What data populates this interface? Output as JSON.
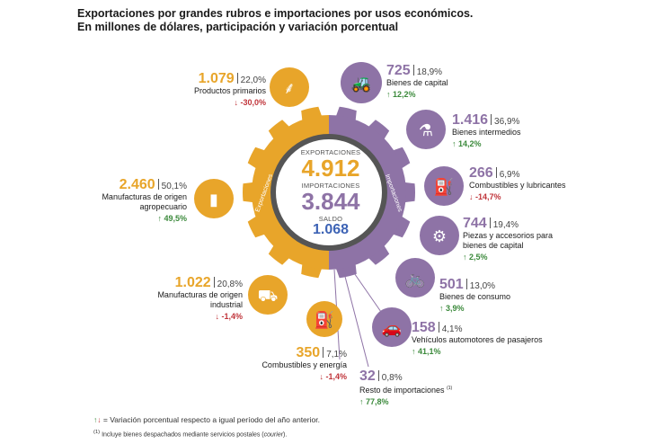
{
  "title_line1": "Exportaciones por grandes rubros e importaciones por usos económicos.",
  "title_line2": "En millones de dólares, participación y variación porcentual",
  "colors": {
    "exports": "#E8A52A",
    "imports": "#8E73A6",
    "balance": "#3D63B5",
    "up": "#3C8A3C",
    "down": "#C0343A"
  },
  "center": {
    "exports_label": "EXPORTACIONES",
    "exports_value": "4.912",
    "imports_label": "IMPORTACIONES",
    "imports_value": "3.844",
    "balance_label": "SALDO",
    "balance_value": "1.068",
    "ring_exports": "Exportaciones",
    "ring_imports": "Importaciones"
  },
  "exports": [
    {
      "value": "1.079",
      "share": "22,0%",
      "name": "Productos primarios",
      "variation": "-30,0%",
      "dir": "down",
      "icon": "wheat-icon"
    },
    {
      "value": "2.460",
      "share": "50,1%",
      "name": "Manufacturas de origen agropecuario",
      "variation": "49,5%",
      "dir": "up",
      "icon": "bottle-icon"
    },
    {
      "value": "1.022",
      "share": "20,8%",
      "name": "Manufacturas de origen industrial",
      "variation": "-1,4%",
      "dir": "down",
      "icon": "truck-icon"
    },
    {
      "value": "350",
      "share": "7,1%",
      "name": "Combustibles y energía",
      "variation": "-1,4%",
      "dir": "down",
      "icon": "fuel-drop-icon"
    }
  ],
  "imports": [
    {
      "value": "725",
      "share": "18,9%",
      "name": "Bienes de capital",
      "variation": "12,2%",
      "dir": "up",
      "icon": "tractor-icon"
    },
    {
      "value": "1.416",
      "share": "36,9%",
      "name": "Bienes intermedios",
      "variation": "14,2%",
      "dir": "up",
      "icon": "flask-icon"
    },
    {
      "value": "266",
      "share": "6,9%",
      "name": "Combustibles y lubricantes",
      "variation": "-14,7%",
      "dir": "down",
      "icon": "jerrycan-icon"
    },
    {
      "value": "744",
      "share": "19,4%",
      "name": "Piezas y accesorios para bienes de capital",
      "variation": "2,5%",
      "dir": "up",
      "icon": "screw-icon"
    },
    {
      "value": "501",
      "share": "13,0%",
      "name": "Bienes de consumo",
      "variation": "3,9%",
      "dir": "up",
      "icon": "bicycle-icon"
    },
    {
      "value": "158",
      "share": "4,1%",
      "name": "Vehículos automotores de pasajeros",
      "variation": "41,1%",
      "dir": "up",
      "icon": "car-icon"
    },
    {
      "value": "32",
      "share": "0,8%",
      "name": "Resto de importaciones",
      "note": "(1)",
      "variation": "77,8%",
      "dir": "up",
      "icon": ""
    }
  ],
  "footnotes": {
    "legend": "= Variación porcentual respecto a igual período del año anterior.",
    "note1_marker": "(1)",
    "note1": "Incluye bienes despachados mediante servicios postales (",
    "note1_em": "courier",
    "note1_end": ")."
  },
  "chart_data": {
    "type": "pie",
    "title": "Exportaciones por grandes rubros e importaciones por usos económicos.",
    "subtitle": "En millones de dólares, participación y variación porcentual",
    "totals": {
      "exportaciones": 4912,
      "importaciones": 3844,
      "saldo": 1068
    },
    "series": [
      {
        "name": "Exportaciones",
        "categories": [
          "Productos primarios",
          "Manufacturas de origen agropecuario",
          "Manufacturas de origen industrial",
          "Combustibles y energía"
        ],
        "values": [
          1079,
          2460,
          1022,
          350
        ],
        "shares": [
          22.0,
          50.1,
          20.8,
          7.1
        ],
        "variation": [
          -30.0,
          49.5,
          -1.4,
          -1.4
        ]
      },
      {
        "name": "Importaciones",
        "categories": [
          "Bienes de capital",
          "Bienes intermedios",
          "Combustibles y lubricantes",
          "Piezas y accesorios para bienes de capital",
          "Bienes de consumo",
          "Vehículos automotores de pasajeros",
          "Resto de importaciones"
        ],
        "values": [
          725,
          1416,
          266,
          744,
          501,
          158,
          32
        ],
        "shares": [
          18.9,
          36.9,
          6.9,
          19.4,
          13.0,
          4.1,
          0.8
        ],
        "variation": [
          12.2,
          14.2,
          -14.7,
          2.5,
          3.9,
          41.1,
          77.8
        ]
      }
    ]
  }
}
